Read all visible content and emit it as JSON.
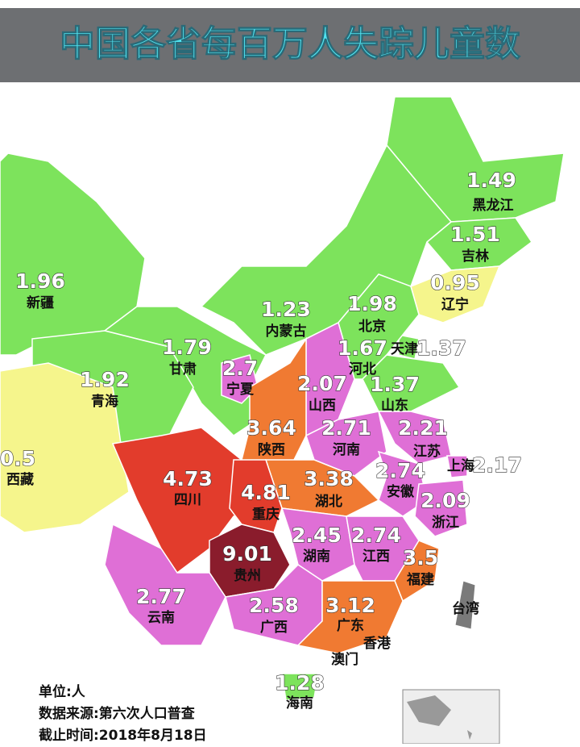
{
  "title": "中国各省每百万人失踪儿童数",
  "regions": [
    {
      "name": "黑龙江",
      "value": 1.49,
      "color": "#7de35c"
    },
    {
      "name": "吉林",
      "value": 1.51,
      "color": "#7de35c"
    },
    {
      "name": "辽宁",
      "value": 0.95,
      "color": "#f5f58c"
    },
    {
      "name": "新疆",
      "value": 1.96,
      "color": "#7de35c"
    },
    {
      "name": "内蒙古",
      "value": 1.23,
      "color": "#7de35c"
    },
    {
      "name": "北京",
      "value": 1.98,
      "color": "#7de35c"
    },
    {
      "name": "天津",
      "value": 1.37,
      "color": "#7de35c"
    },
    {
      "name": "河北",
      "value": 1.67,
      "color": "#7de35c"
    },
    {
      "name": "甘肃",
      "value": 1.79,
      "color": "#7de35c"
    },
    {
      "name": "宁夏",
      "value": 2.7,
      "color": "#df6fd6"
    },
    {
      "name": "山西",
      "value": 2.07,
      "color": "#df6fd6"
    },
    {
      "name": "山东",
      "value": 1.37,
      "color": "#7de35c"
    },
    {
      "name": "青海",
      "value": 1.92,
      "color": "#7de35c"
    },
    {
      "name": "陕西",
      "value": 3.64,
      "color": "#f07a32"
    },
    {
      "name": "河南",
      "value": 2.71,
      "color": "#df6fd6"
    },
    {
      "name": "江苏",
      "value": 2.21,
      "color": "#df6fd6"
    },
    {
      "name": "西藏",
      "value": 0.5,
      "color": "#f5f58c"
    },
    {
      "name": "上海",
      "value": 2.17,
      "color": "#df6fd6"
    },
    {
      "name": "四川",
      "value": 4.73,
      "color": "#e23c2c"
    },
    {
      "name": "安徽",
      "value": 2.74,
      "color": "#df6fd6"
    },
    {
      "name": "湖北",
      "value": 3.38,
      "color": "#f07a32"
    },
    {
      "name": "重庆",
      "value": 4.81,
      "color": "#e23c2c"
    },
    {
      "name": "浙江",
      "value": 2.09,
      "color": "#df6fd6"
    },
    {
      "name": "湖南",
      "value": 2.45,
      "color": "#df6fd6"
    },
    {
      "name": "江西",
      "value": 2.74,
      "color": "#df6fd6"
    },
    {
      "name": "贵州",
      "value": 9.01,
      "color": "#8a1c2c"
    },
    {
      "name": "福建",
      "value": 3.5,
      "color": "#f07a32"
    },
    {
      "name": "云南",
      "value": 2.77,
      "color": "#df6fd6"
    },
    {
      "name": "广西",
      "value": 2.58,
      "color": "#df6fd6"
    },
    {
      "name": "广东",
      "value": 3.12,
      "color": "#f07a32"
    },
    {
      "name": "海南",
      "value": 1.28,
      "color": "#7de35c"
    }
  ],
  "other_labels": [
    "台湾",
    "香港",
    "澳门"
  ],
  "notes": [
    "单位:人",
    "数据来源:第六次人口普查",
    "截止时间:2018年8月18日"
  ]
}
